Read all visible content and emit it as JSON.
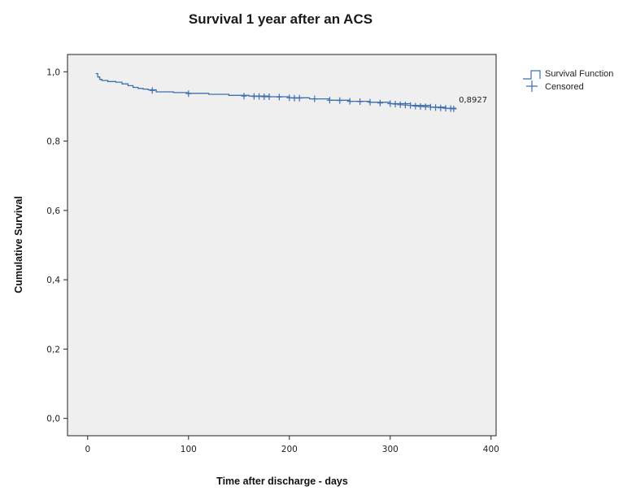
{
  "chart_data": {
    "type": "line",
    "title": "Survival 1 year after an ACS",
    "xlabel": "Time after discharge - days",
    "ylabel": "Cumulative Survival",
    "xlim": [
      -20,
      405
    ],
    "ylim": [
      -0.05,
      1.05
    ],
    "xticks": [
      0,
      100,
      200,
      300,
      400
    ],
    "xtick_labels": [
      "0",
      "100",
      "200",
      "300",
      "400"
    ],
    "yticks": [
      0.0,
      0.2,
      0.4,
      0.6,
      0.8,
      1.0
    ],
    "ytick_labels": [
      "0,0",
      "0,2",
      "0,4",
      "0,6",
      "0,8",
      "1,0"
    ],
    "grid": false,
    "legend_position": "right",
    "series": [
      {
        "name": "Survival Function",
        "step": true,
        "color": "#3f6fae",
        "x": [
          8,
          10,
          12,
          14,
          20,
          28,
          34,
          40,
          45,
          50,
          55,
          60,
          68,
          85,
          100,
          120,
          140,
          160,
          180,
          200,
          220,
          240,
          260,
          280,
          300,
          320,
          340,
          355,
          365
        ],
        "y": [
          0.995,
          0.985,
          0.978,
          0.975,
          0.972,
          0.97,
          0.965,
          0.96,
          0.955,
          0.952,
          0.95,
          0.948,
          0.942,
          0.94,
          0.938,
          0.935,
          0.932,
          0.93,
          0.928,
          0.925,
          0.922,
          0.918,
          0.915,
          0.912,
          0.908,
          0.903,
          0.898,
          0.895,
          0.8927
        ]
      },
      {
        "name": "Censored",
        "marker": "+",
        "color": "#3f6fae",
        "x": [
          64,
          100,
          155,
          165,
          170,
          175,
          180,
          190,
          200,
          205,
          210,
          225,
          240,
          250,
          260,
          270,
          280,
          290,
          300,
          305,
          310,
          315,
          320,
          325,
          330,
          335,
          340,
          345,
          350,
          355,
          360,
          363
        ],
        "y": [
          0.946,
          0.937,
          0.93,
          0.929,
          0.929,
          0.928,
          0.928,
          0.927,
          0.925,
          0.924,
          0.924,
          0.922,
          0.918,
          0.917,
          0.915,
          0.914,
          0.912,
          0.91,
          0.908,
          0.907,
          0.905,
          0.904,
          0.903,
          0.901,
          0.9,
          0.899,
          0.898,
          0.897,
          0.896,
          0.895,
          0.894,
          0.893
        ]
      }
    ],
    "annotations": [
      {
        "text": "0,8927",
        "x": 368,
        "y": 0.8927
      }
    ],
    "plot_background": "#efefef"
  }
}
